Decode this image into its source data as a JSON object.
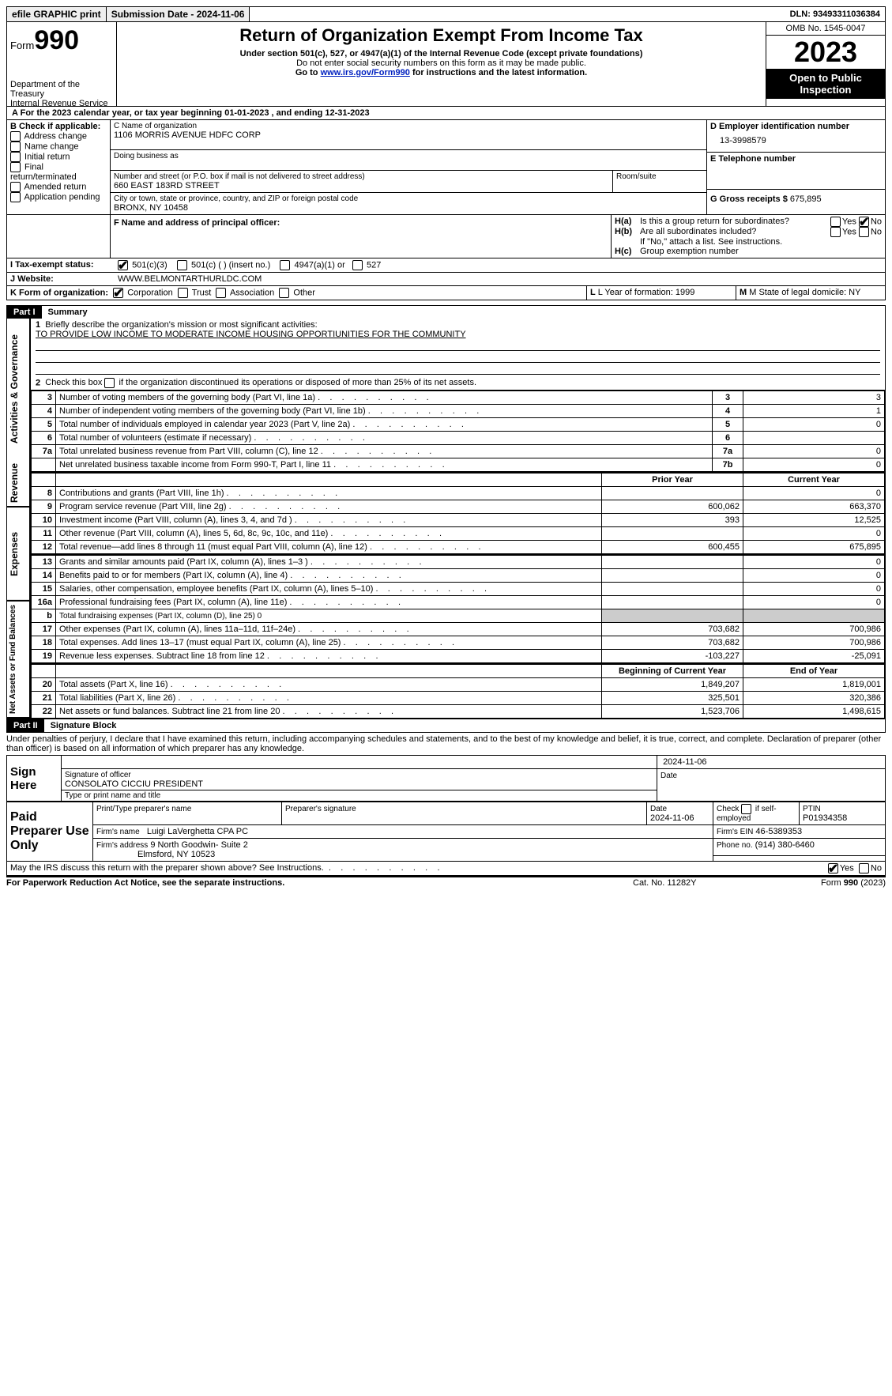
{
  "topbar": {
    "efile": "efile GRAPHIC print",
    "submission": "Submission Date - 2024-11-06",
    "dln": "DLN: 93493311036384"
  },
  "header": {
    "form_prefix": "Form",
    "form_num": "990",
    "dept": "Department of the Treasury",
    "irs": "Internal Revenue Service",
    "title": "Return of Organization Exempt From Income Tax",
    "sub1": "Under section 501(c), 527, or 4947(a)(1) of the Internal Revenue Code (except private foundations)",
    "sub2": "Do not enter social security numbers on this form as it may be made public.",
    "sub3_pre": "Go to ",
    "sub3_link": "www.irs.gov/Form990",
    "sub3_post": " for instructions and the latest information.",
    "omb": "OMB No. 1545-0047",
    "year": "2023",
    "open": "Open to Public Inspection"
  },
  "line_a": "For the 2023 calendar year, or tax year beginning 01-01-2023    , and ending 12-31-2023",
  "box_b": {
    "title": "B Check if applicable:",
    "items": [
      "Address change",
      "Name change",
      "Initial return",
      "Final return/terminated",
      "Amended return",
      "Application pending"
    ]
  },
  "box_c": {
    "label": "C Name of organization",
    "name": "1106 MORRIS AVENUE HDFC CORP",
    "dba": "Doing business as",
    "addr_label": "Number and street (or P.O. box if mail is not delivered to street address)",
    "addr": "660 EAST 183RD STREET",
    "room": "Room/suite",
    "city_label": "City or town, state or province, country, and ZIP or foreign postal code",
    "city": "BRONX, NY  10458"
  },
  "box_d": {
    "label": "D Employer identification number",
    "val": "13-3998579"
  },
  "box_e": {
    "label": "E Telephone number"
  },
  "box_g": {
    "label": "G Gross receipts $",
    "val": "675,895"
  },
  "box_f": "F   Name and address of principal officer:",
  "box_h": {
    "a": "Is this a group return for subordinates?",
    "b": "Are all subordinates included?",
    "note": "If \"No,\" attach a list. See instructions.",
    "c": "Group exemption number"
  },
  "box_i": {
    "label": "I    Tax-exempt status:",
    "opts": [
      "501(c)(3)",
      "501(c) (  ) (insert no.)",
      "4947(a)(1) or",
      "527"
    ]
  },
  "box_j": {
    "label": "J    Website:",
    "val": "WWW.BELMONTARTHURLDC.COM"
  },
  "box_k": {
    "label": "K Form of organization:",
    "opts": [
      "Corporation",
      "Trust",
      "Association",
      "Other"
    ]
  },
  "box_l": "L Year of formation: 1999",
  "box_m": "M State of legal domicile: NY",
  "part1": {
    "bar": "Part I",
    "title": "Summary",
    "l1a": "Briefly describe the organization's mission or most significant activities:",
    "l1b": "TO PROVIDE LOW INCOME TO MODERATE INCOME HOUSING OPPORTIUNITIES FOR THE COMMUNITY",
    "l2": "Check this box       if the organization discontinued its operations or disposed of more than 25% of its net assets.",
    "sections": {
      "actgov": "Activities & Governance",
      "rev": "Revenue",
      "exp": "Expenses",
      "net": "Net Assets or Fund Balances"
    },
    "rows_simple": [
      {
        "n": "3",
        "t": "Number of voting members of the governing body (Part VI, line 1a)",
        "box": "3",
        "v": "3"
      },
      {
        "n": "4",
        "t": "Number of independent voting members of the governing body (Part VI, line 1b)",
        "box": "4",
        "v": "1"
      },
      {
        "n": "5",
        "t": "Total number of individuals employed in calendar year 2023 (Part V, line 2a)",
        "box": "5",
        "v": "0"
      },
      {
        "n": "6",
        "t": "Total number of volunteers (estimate if necessary)",
        "box": "6",
        "v": ""
      },
      {
        "n": "7a",
        "t": "Total unrelated business revenue from Part VIII, column (C), line 12",
        "box": "7a",
        "v": "0"
      },
      {
        "n": "",
        "t": "Net unrelated business taxable income from Form 990-T, Part I, line 11",
        "box": "7b",
        "v": "0"
      }
    ],
    "hdr_prior": "Prior Year",
    "hdr_curr": "Current Year",
    "rows_rev": [
      {
        "n": "8",
        "t": "Contributions and grants (Part VIII, line 1h)",
        "p": "",
        "c": "0"
      },
      {
        "n": "9",
        "t": "Program service revenue (Part VIII, line 2g)",
        "p": "600,062",
        "c": "663,370"
      },
      {
        "n": "10",
        "t": "Investment income (Part VIII, column (A), lines 3, 4, and 7d )",
        "p": "393",
        "c": "12,525"
      },
      {
        "n": "11",
        "t": "Other revenue (Part VIII, column (A), lines 5, 6d, 8c, 9c, 10c, and 11e)",
        "p": "",
        "c": "0"
      },
      {
        "n": "12",
        "t": "Total revenue—add lines 8 through 11 (must equal Part VIII, column (A), line 12)",
        "p": "600,455",
        "c": "675,895"
      }
    ],
    "rows_exp": [
      {
        "n": "13",
        "t": "Grants and similar amounts paid (Part IX, column (A), lines 1–3 )",
        "p": "",
        "c": "0"
      },
      {
        "n": "14",
        "t": "Benefits paid to or for members (Part IX, column (A), line 4)",
        "p": "",
        "c": "0"
      },
      {
        "n": "15",
        "t": "Salaries, other compensation, employee benefits (Part IX, column (A), lines 5–10)",
        "p": "",
        "c": "0"
      },
      {
        "n": "16a",
        "t": "Professional fundraising fees (Part IX, column (A), line 11e)",
        "p": "",
        "c": "0"
      },
      {
        "n": "b",
        "t": "Total fundraising expenses (Part IX, column (D), line 25) 0",
        "shade": true
      },
      {
        "n": "17",
        "t": "Other expenses (Part IX, column (A), lines 11a–11d, 11f–24e)",
        "p": "703,682",
        "c": "700,986"
      },
      {
        "n": "18",
        "t": "Total expenses. Add lines 13–17 (must equal Part IX, column (A), line 25)",
        "p": "703,682",
        "c": "700,986"
      },
      {
        "n": "19",
        "t": "Revenue less expenses. Subtract line 18 from line 12",
        "p": "-103,227",
        "c": "-25,091"
      }
    ],
    "hdr_beg": "Beginning of Current Year",
    "hdr_end": "End of Year",
    "rows_net": [
      {
        "n": "20",
        "t": "Total assets (Part X, line 16)",
        "p": "1,849,207",
        "c": "1,819,001"
      },
      {
        "n": "21",
        "t": "Total liabilities (Part X, line 26)",
        "p": "325,501",
        "c": "320,386"
      },
      {
        "n": "22",
        "t": "Net assets or fund balances. Subtract line 21 from line 20",
        "p": "1,523,706",
        "c": "1,498,615"
      }
    ]
  },
  "part2": {
    "bar": "Part II",
    "title": "Signature Block",
    "decl": "Under penalties of perjury, I declare that I have examined this return, including accompanying schedules and statements, and to the best of my knowledge and belief, it is true, correct, and complete. Declaration of preparer (other than officer) is based on all information of which preparer has any knowledge.",
    "sign_here": "Sign Here",
    "sig_officer": "Signature of officer",
    "officer": "CONSOLATO CICCIU  PRESIDENT",
    "type_name": "Type or print name and title",
    "date": "2024-11-06",
    "date_lbl": "Date",
    "paid": "Paid Preparer Use Only",
    "pp_name_lbl": "Print/Type preparer's name",
    "pp_sig_lbl": "Preparer's signature",
    "pp_date": "2024-11-06",
    "pp_check": "Check        if self-employed",
    "ptin_lbl": "PTIN",
    "ptin": "P01934358",
    "firm_name_lbl": "Firm's name",
    "firm_name": "Luigi LaVerghetta CPA PC",
    "firm_ein_lbl": "Firm's EIN",
    "firm_ein": "46-5389353",
    "firm_addr_lbl": "Firm's address",
    "firm_addr1": "9 North Goodwin- Suite 2",
    "firm_addr2": "Elmsford, NY  10523",
    "phone_lbl": "Phone no.",
    "phone": "(914) 380-6460",
    "discuss": "May the IRS discuss this return with the preparer shown above? See Instructions."
  },
  "footer": {
    "left": "For Paperwork Reduction Act Notice, see the separate instructions.",
    "mid": "Cat. No. 11282Y",
    "right": "Form 990 (2023)"
  },
  "yn": {
    "yes": "Yes",
    "no": "No"
  }
}
